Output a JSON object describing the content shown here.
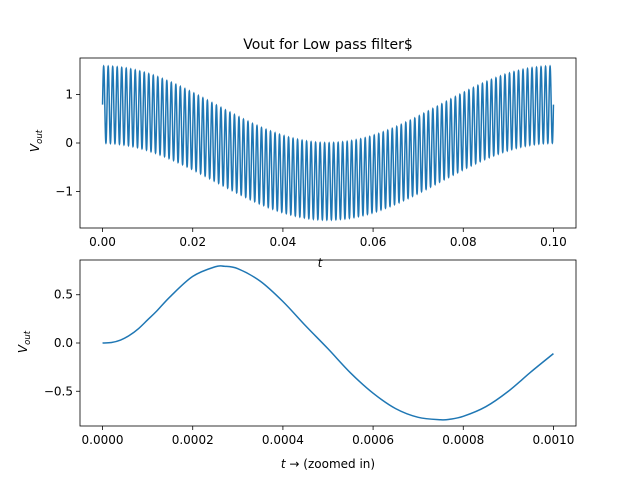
{
  "chart_data": [
    {
      "type": "line",
      "title": "Vout for Low pass filter$",
      "xlabel": "t",
      "ylabel_main": "V",
      "ylabel_sub": "out",
      "xlim": [
        -0.005,
        0.105
      ],
      "ylim": [
        -1.75,
        1.75
      ],
      "x_ticks": [
        0.0,
        0.02,
        0.04,
        0.06,
        0.08,
        0.1
      ],
      "x_tick_labels": [
        "0.00",
        "0.02",
        "0.04",
        "0.06",
        "0.08",
        "0.10"
      ],
      "y_ticks": [
        -1,
        0,
        1
      ],
      "y_tick_labels": [
        "−1",
        "0",
        "1"
      ],
      "color": "#1f77b4",
      "series": [
        {
          "x_start": 0.0,
          "x_end": 0.1,
          "carrier_amplitude": 0.79,
          "carrier_period": 0.001,
          "envelope_amplitude": 0.79,
          "envelope_period": 0.1
        }
      ]
    },
    {
      "type": "line",
      "title": "",
      "xlabel_main": "t",
      "xlabel_suffix": " (zoomed in)",
      "ylabel_main": "V",
      "ylabel_sub": "out",
      "xlim": [
        -5e-05,
        0.00105
      ],
      "ylim": [
        -0.86,
        0.86
      ],
      "x_ticks": [
        0.0,
        0.0002,
        0.0004,
        0.0006,
        0.0008,
        0.001
      ],
      "x_tick_labels": [
        "0.0000",
        "0.0002",
        "0.0004",
        "0.0006",
        "0.0008",
        "0.0010"
      ],
      "y_ticks": [
        -0.5,
        0.0,
        0.5
      ],
      "y_tick_labels": [
        "−0.5",
        "0.0",
        "0.5"
      ],
      "color": "#1f77b4",
      "series": [
        {
          "x": [
            0.0,
            2e-05,
            4e-05,
            6e-05,
            8e-05,
            0.0001,
            0.00012,
            0.00015,
            0.0002,
            0.00025,
            0.00027,
            0.0003,
            0.00035,
            0.0004,
            0.00045,
            0.0005,
            0.00055,
            0.0006,
            0.00065,
            0.0007,
            0.00075,
            0.00077,
            0.0008,
            0.00085,
            0.0009,
            0.00095,
            0.001
          ],
          "y": [
            0.0,
            0.005,
            0.03,
            0.08,
            0.15,
            0.24,
            0.33,
            0.48,
            0.69,
            0.79,
            0.795,
            0.77,
            0.64,
            0.43,
            0.18,
            -0.06,
            -0.31,
            -0.52,
            -0.68,
            -0.77,
            -0.795,
            -0.79,
            -0.76,
            -0.66,
            -0.5,
            -0.3,
            -0.11
          ]
        }
      ]
    }
  ]
}
